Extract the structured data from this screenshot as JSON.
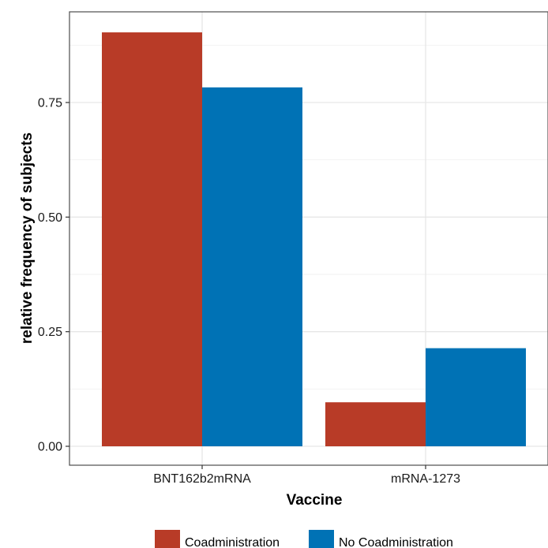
{
  "chart_data": {
    "type": "bar",
    "categories": [
      "BNT162b2mRNA",
      "mRNA-1273"
    ],
    "series": [
      {
        "name": "Coadministration",
        "color": "#B83B27",
        "values": [
          0.903,
          0.096
        ]
      },
      {
        "name": "No Coadministration",
        "color": "#0072B5",
        "values": [
          0.783,
          0.214
        ]
      }
    ],
    "xlabel": "Vaccine",
    "ylabel": "relative frequency of subjects",
    "ylim": [
      0,
      0.94
    ],
    "yticks": [
      0,
      0.25,
      0.5,
      0.75
    ],
    "ytick_labels": [
      "0.00",
      "0.25",
      "0.50",
      "0.75"
    ],
    "grid": true,
    "legend_position": "bottom"
  }
}
